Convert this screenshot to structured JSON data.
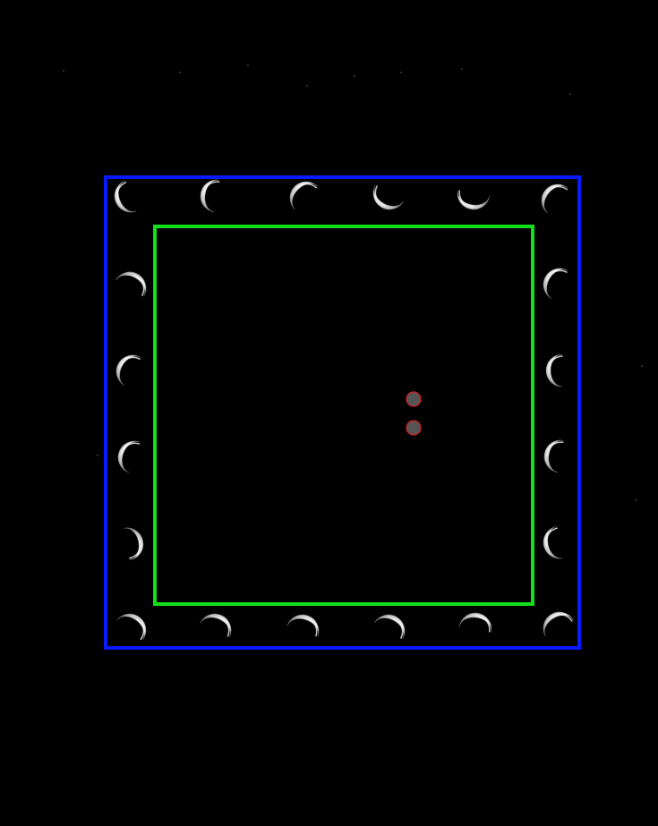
{
  "colors": {
    "background": "#000000",
    "outer_border": "#0a1aff",
    "inner_border": "#11e01a",
    "moon_light": "#f2f2f2",
    "moon_mid": "#bdbdbd",
    "moon_dark": "#7a7a7a",
    "marker_fill": "#555555",
    "marker_ring": "#d11f1f"
  },
  "icons": {
    "moon_tile": "crescent-moon-icon",
    "marker": "target-dot-icon"
  },
  "board": {
    "outer_frame": "outer-frame",
    "inner_frame": "inner-frame",
    "tiles_per_side": 6,
    "marker_count": 2
  }
}
